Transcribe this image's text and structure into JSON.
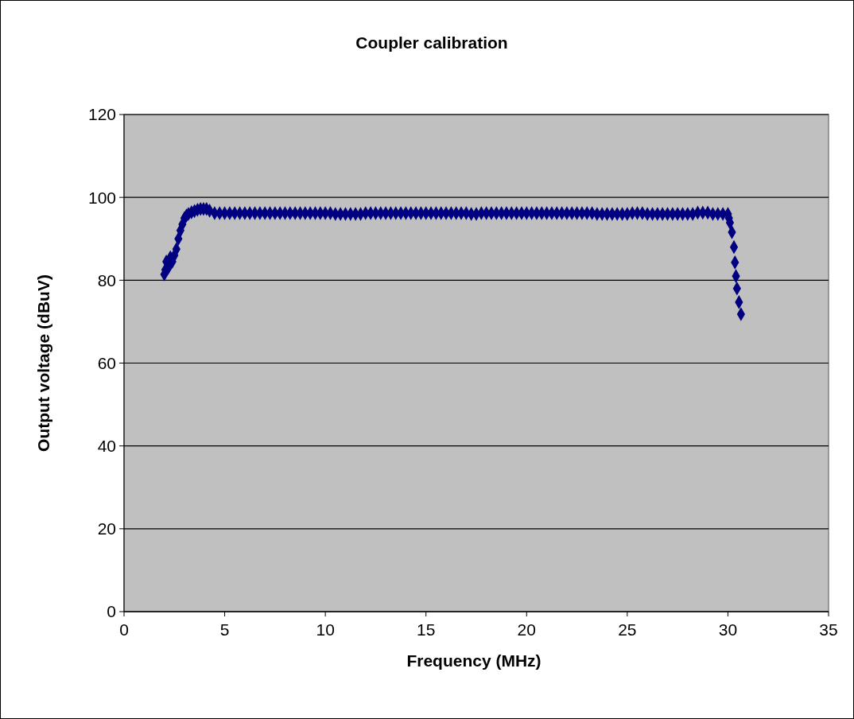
{
  "chart_data": {
    "type": "scatter",
    "title": "Coupler calibration",
    "xlabel": "Frequency (MHz)",
    "ylabel": "Output voltage (dBuV)",
    "xlim": [
      0,
      35
    ],
    "xticks": [
      0,
      5,
      10,
      15,
      20,
      25,
      30,
      35
    ],
    "ylim": [
      0,
      120
    ],
    "yticks": [
      0,
      20,
      40,
      60,
      80,
      100,
      120
    ],
    "grid": "y",
    "marker": "diamond",
    "series": [
      {
        "color": "#000080",
        "x": [
          2.0,
          2.05,
          2.1,
          2.2,
          2.3,
          2.4,
          2.5,
          2.6,
          2.7,
          2.8,
          2.9,
          3.0,
          3.1,
          3.2,
          3.35,
          3.5,
          3.65,
          3.8,
          3.95,
          4.1,
          4.25,
          4.5,
          4.75,
          5,
          5.25,
          5.5,
          5.75,
          6,
          6.25,
          6.5,
          6.75,
          7,
          7.25,
          7.5,
          7.75,
          8,
          8.25,
          8.5,
          8.75,
          9,
          9.25,
          9.5,
          9.75,
          10,
          10.25,
          10.5,
          10.75,
          11,
          11.25,
          11.5,
          11.75,
          12,
          12.25,
          12.5,
          12.75,
          13,
          13.25,
          13.5,
          13.75,
          14,
          14.25,
          14.5,
          14.75,
          15,
          15.25,
          15.5,
          15.75,
          16,
          16.25,
          16.5,
          16.75,
          17,
          17.25,
          17.5,
          17.75,
          18,
          18.25,
          18.5,
          18.75,
          19,
          19.25,
          19.5,
          19.75,
          20,
          20.25,
          20.5,
          20.75,
          21,
          21.25,
          21.5,
          21.75,
          22,
          22.25,
          22.5,
          22.75,
          23,
          23.25,
          23.5,
          23.75,
          24,
          24.25,
          24.5,
          24.75,
          25,
          25.25,
          25.5,
          25.75,
          26,
          26.25,
          26.5,
          26.75,
          27,
          27.25,
          27.5,
          27.75,
          28,
          28.25,
          28.5,
          28.75,
          29,
          29.25,
          29.5,
          29.75,
          30,
          30.05,
          30.1,
          30.2,
          30.3,
          30.35,
          30.4,
          30.45,
          30.55,
          30.65
        ],
        "values": [
          81.4,
          82.5,
          84.5,
          83,
          85.5,
          84.5,
          86,
          87.5,
          90,
          92,
          93.5,
          95,
          95.6,
          96,
          96.4,
          96.7,
          97,
          97.2,
          97.2,
          97.2,
          96.8,
          96.2,
          96.2,
          96.2,
          96.2,
          96.2,
          96.2,
          96.2,
          96.2,
          96.2,
          96.2,
          96.2,
          96.2,
          96.2,
          96.2,
          96.2,
          96.2,
          96.2,
          96.2,
          96.2,
          96.2,
          96.2,
          96.2,
          96.2,
          96.2,
          96,
          96,
          96,
          96,
          96,
          96,
          96.2,
          96.2,
          96.2,
          96.2,
          96.2,
          96.2,
          96.2,
          96.2,
          96.2,
          96.2,
          96.2,
          96.2,
          96.2,
          96.2,
          96.2,
          96.2,
          96.2,
          96.2,
          96.2,
          96.2,
          96.2,
          96,
          96,
          96.2,
          96.2,
          96.2,
          96.2,
          96.2,
          96.2,
          96.2,
          96.2,
          96.2,
          96.2,
          96.2,
          96.2,
          96.2,
          96.2,
          96.2,
          96.2,
          96.2,
          96.2,
          96.2,
          96.2,
          96.2,
          96.2,
          96.2,
          96,
          96,
          96,
          96,
          96,
          96,
          96,
          96.2,
          96.2,
          96.2,
          96,
          96,
          96,
          96,
          96,
          96,
          96,
          96,
          96,
          96,
          96.3,
          96.3,
          96.3,
          96,
          96,
          96,
          96,
          95,
          93.9,
          91.6,
          88,
          84.3,
          81,
          78,
          74.7,
          71.8
        ]
      }
    ]
  }
}
